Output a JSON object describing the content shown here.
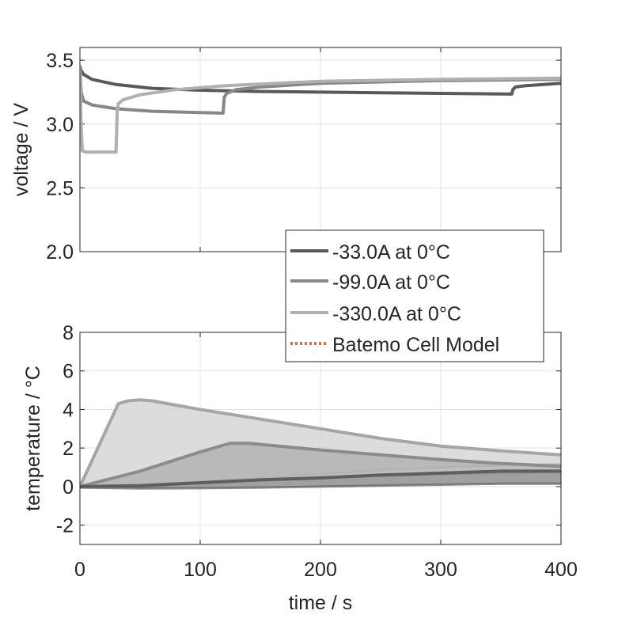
{
  "chart_data": [
    {
      "type": "line",
      "ylabel": "voltage / V",
      "xlim": [
        0,
        400
      ],
      "ylim": [
        2.0,
        3.6
      ],
      "xticks": [
        0,
        100,
        200,
        300,
        400
      ],
      "yticks": [
        "2.0",
        "2.5",
        "3.0",
        "3.5"
      ],
      "grid": true,
      "series": [
        {
          "name": "-33.0A at 0°C",
          "color": "#595959",
          "x": [
            0,
            1,
            3,
            10,
            30,
            60,
            100,
            150,
            200,
            250,
            300,
            359,
            360,
            362,
            370,
            400
          ],
          "y": [
            3.46,
            3.42,
            3.39,
            3.35,
            3.31,
            3.28,
            3.265,
            3.255,
            3.25,
            3.245,
            3.24,
            3.235,
            3.27,
            3.29,
            3.3,
            3.32
          ]
        },
        {
          "name": "-99.0A at 0°C",
          "color": "#878787",
          "x": [
            0,
            1,
            3,
            10,
            30,
            60,
            100,
            119,
            120,
            122,
            130,
            150,
            200,
            250,
            300,
            350,
            400
          ],
          "y": [
            3.46,
            3.25,
            3.18,
            3.15,
            3.12,
            3.1,
            3.09,
            3.085,
            3.21,
            3.24,
            3.27,
            3.29,
            3.32,
            3.33,
            3.34,
            3.345,
            3.35
          ]
        },
        {
          "name": "-330.0A at 0°C",
          "color": "#b0b0b0",
          "x": [
            0,
            1,
            2,
            5,
            15,
            30,
            31,
            32,
            36,
            50,
            80,
            120,
            200,
            300,
            400
          ],
          "y": [
            3.46,
            3.0,
            2.79,
            2.78,
            2.78,
            2.78,
            3.1,
            3.16,
            3.19,
            3.23,
            3.27,
            3.3,
            3.335,
            3.35,
            3.36
          ]
        }
      ]
    },
    {
      "type": "area",
      "xlabel": "time / s",
      "ylabel": "temperature / °C",
      "xlim": [
        0,
        400
      ],
      "ylim": [
        -3,
        8
      ],
      "xticks": [
        0,
        100,
        200,
        300,
        400
      ],
      "yticks": [
        "-2",
        "0",
        "2",
        "4",
        "6",
        "8"
      ],
      "grid": true,
      "series": [
        {
          "name": "-330.0A at 0°C",
          "color": "#a6a6a6",
          "fill": "#d6d6d6",
          "x": [
            0,
            32,
            40,
            50,
            60,
            100,
            150,
            200,
            250,
            300,
            350,
            400
          ],
          "upper": [
            0,
            4.3,
            4.45,
            4.5,
            4.45,
            4.0,
            3.5,
            3.0,
            2.5,
            2.1,
            1.85,
            1.65
          ],
          "lower": [
            0,
            0.05,
            0.08,
            0.1,
            0.12,
            0.25,
            0.45,
            0.65,
            0.85,
            1.0,
            1.1,
            1.15
          ]
        },
        {
          "name": "-99.0A at 0°C",
          "color": "#8c8c8c",
          "fill": "#b3b3b3",
          "x": [
            0,
            50,
            100,
            125,
            140,
            200,
            250,
            300,
            350,
            400
          ],
          "upper": [
            0,
            0.8,
            1.8,
            2.25,
            2.25,
            1.9,
            1.65,
            1.4,
            1.2,
            1.05
          ],
          "lower": [
            0,
            0.05,
            0.2,
            0.25,
            0.3,
            0.45,
            0.55,
            0.65,
            0.7,
            0.75
          ]
        },
        {
          "name": "-33.0A at 0°C",
          "color": "#5e5e5e",
          "fill": "#8f8f8f",
          "x": [
            0,
            50,
            100,
            150,
            200,
            250,
            300,
            350,
            400
          ],
          "upper": [
            0,
            0.05,
            0.2,
            0.35,
            0.45,
            0.6,
            0.7,
            0.8,
            0.8
          ],
          "lower": [
            -0.05,
            -0.1,
            -0.08,
            -0.05,
            0,
            0.05,
            0.1,
            0.15,
            0.15
          ]
        }
      ]
    }
  ],
  "legend": {
    "placement": "center-right",
    "entries": [
      {
        "label": "-33.0A at 0°C",
        "color": "#595959",
        "style": "solid"
      },
      {
        "label": "-99.0A at 0°C",
        "color": "#878787",
        "style": "solid"
      },
      {
        "label": "-330.0A at 0°C",
        "color": "#b0b0b0",
        "style": "solid"
      },
      {
        "label": "Batemo Cell Model",
        "color": "#f26522",
        "style": "dotted"
      }
    ]
  }
}
